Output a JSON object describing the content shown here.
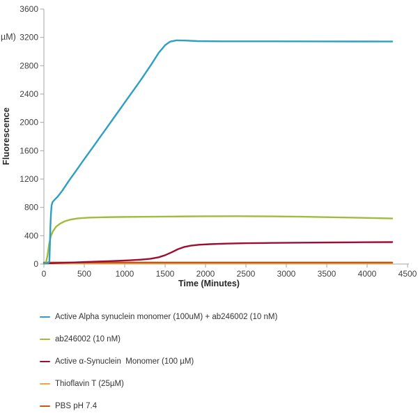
{
  "figure": {
    "y_axis_unit_label": "µM)",
    "y_axis_title": "Fluorescence",
    "x_axis_title": "Time (Minutes)"
  },
  "chart_data": {
    "type": "line",
    "title": "",
    "xlabel": "Time (Minutes)",
    "ylabel": "Fluorescence (µM)",
    "xlim": [
      0,
      4500
    ],
    "ylim": [
      0,
      3600
    ],
    "x_ticks": [
      0,
      500,
      1000,
      1500,
      2000,
      2500,
      3000,
      3500,
      4000,
      4500
    ],
    "y_ticks": [
      0,
      400,
      800,
      1200,
      1600,
      2000,
      2400,
      2800,
      3200,
      3600
    ],
    "grid": false,
    "legend_position": "below-left",
    "axis_color": "#a6a6a6",
    "tick_label_color": "#404040",
    "series": [
      {
        "name": "Active Alpha synuclein monomer (100uM) + ab246002 (10 nM)",
        "color": "#2d9fc5",
        "points": [
          [
            0,
            10
          ],
          [
            55,
            14
          ],
          [
            68,
            40
          ],
          [
            74,
            250
          ],
          [
            80,
            520
          ],
          [
            88,
            720
          ],
          [
            96,
            830
          ],
          [
            108,
            875
          ],
          [
            130,
            905
          ],
          [
            170,
            950
          ],
          [
            230,
            1040
          ],
          [
            300,
            1160
          ],
          [
            400,
            1320
          ],
          [
            480,
            1450
          ],
          [
            600,
            1640
          ],
          [
            750,
            1880
          ],
          [
            900,
            2120
          ],
          [
            1050,
            2360
          ],
          [
            1200,
            2600
          ],
          [
            1330,
            2820
          ],
          [
            1420,
            2980
          ],
          [
            1500,
            3090
          ],
          [
            1560,
            3140
          ],
          [
            1640,
            3158
          ],
          [
            1750,
            3155
          ],
          [
            1900,
            3148
          ],
          [
            2200,
            3145
          ],
          [
            2800,
            3145
          ],
          [
            3400,
            3144
          ],
          [
            4310,
            3142
          ]
        ]
      },
      {
        "name": "ab246002 (10 nM)",
        "color": "#a0bc3c",
        "points": [
          [
            0,
            2
          ],
          [
            25,
            15
          ],
          [
            45,
            120
          ],
          [
            65,
            280
          ],
          [
            85,
            390
          ],
          [
            110,
            460
          ],
          [
            150,
            525
          ],
          [
            200,
            570
          ],
          [
            260,
            605
          ],
          [
            330,
            628
          ],
          [
            420,
            645
          ],
          [
            550,
            655
          ],
          [
            700,
            660
          ],
          [
            900,
            664
          ],
          [
            1200,
            667
          ],
          [
            1600,
            671
          ],
          [
            2000,
            675
          ],
          [
            2400,
            676
          ],
          [
            2800,
            673
          ],
          [
            3200,
            668
          ],
          [
            3600,
            660
          ],
          [
            3950,
            652
          ],
          [
            4310,
            643
          ]
        ]
      },
      {
        "name": "Active α-Synuclein  Monomer (100 µM)",
        "color": "#a00d33",
        "points": [
          [
            0,
            8
          ],
          [
            150,
            14
          ],
          [
            350,
            22
          ],
          [
            600,
            32
          ],
          [
            850,
            42
          ],
          [
            1050,
            52
          ],
          [
            1200,
            62
          ],
          [
            1320,
            75
          ],
          [
            1420,
            95
          ],
          [
            1500,
            125
          ],
          [
            1580,
            165
          ],
          [
            1660,
            210
          ],
          [
            1740,
            242
          ],
          [
            1820,
            260
          ],
          [
            1920,
            272
          ],
          [
            2050,
            280
          ],
          [
            2250,
            288
          ],
          [
            2500,
            294
          ],
          [
            2800,
            298
          ],
          [
            3200,
            302
          ],
          [
            3600,
            305
          ],
          [
            3950,
            308
          ],
          [
            4310,
            310
          ]
        ]
      },
      {
        "name": "Thioflavin T (25µM)",
        "color": "#e9a83f",
        "points": [
          [
            0,
            10
          ],
          [
            2000,
            11
          ],
          [
            4310,
            10
          ]
        ]
      },
      {
        "name": "PBS pH 7.4",
        "color": "#c35a14",
        "points": [
          [
            0,
            22
          ],
          [
            2000,
            22
          ],
          [
            4310,
            22
          ]
        ]
      }
    ],
    "draw_order": [
      3,
      4,
      2,
      1,
      0
    ]
  }
}
